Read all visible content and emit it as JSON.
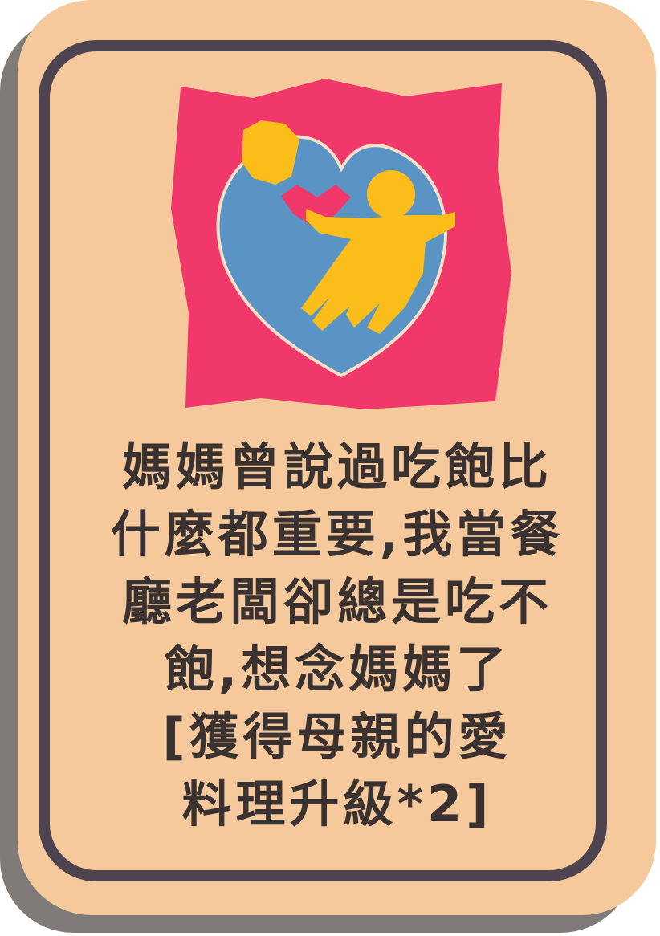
{
  "card": {
    "icon": "heart-mother-child-icon",
    "description_lines": [
      "媽媽曾說過吃飽比",
      "什麼都重要,我當餐",
      "廳老闆卻總是吃不",
      "飽,想念媽媽了"
    ],
    "reward_lines": [
      "[獲得母親的愛",
      "料理升級*2]"
    ]
  },
  "colors": {
    "card_background": "#f5c99c",
    "card_border": "#4e4450",
    "card_shadow": "#7f7b78",
    "emblem_red": "#f0386a",
    "emblem_blue": "#5a94c4",
    "emblem_yellow": "#fbbd1a",
    "text": "#3a3230"
  }
}
